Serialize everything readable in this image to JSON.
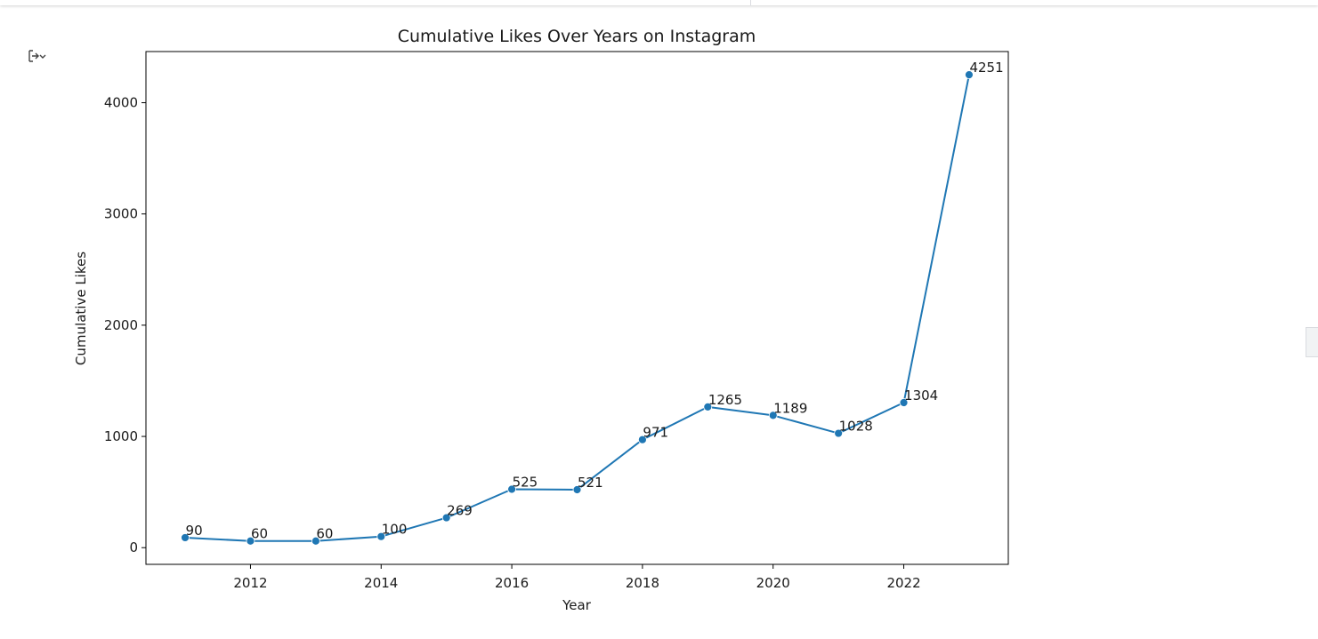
{
  "chart_data": {
    "type": "line",
    "title": "Cumulative Likes Over Years on Instagram",
    "xlabel": "Year",
    "ylabel": "Cumulative Likes",
    "x": [
      2011,
      2012,
      2013,
      2014,
      2015,
      2016,
      2017,
      2018,
      2019,
      2020,
      2021,
      2022,
      2023
    ],
    "series": [
      {
        "values": [
          90,
          60,
          60,
          100,
          269,
          525,
          521,
          971,
          1265,
          1189,
          1028,
          1304,
          4251
        ],
        "color": "#1f77b4",
        "marker": "circle"
      }
    ],
    "data_labels": [
      "90",
      "60",
      "60",
      "100",
      "269",
      "525",
      "521",
      "971",
      "1265",
      "1189",
      "1028",
      "1304",
      "4251"
    ],
    "xticks": [
      2012,
      2014,
      2016,
      2018,
      2020,
      2022
    ],
    "xtick_labels": [
      "2012",
      "2014",
      "2016",
      "2018",
      "2020",
      "2022"
    ],
    "yticks": [
      0,
      1000,
      2000,
      3000,
      4000
    ],
    "ytick_labels": [
      "0",
      "1000",
      "2000",
      "3000",
      "4000"
    ],
    "xlim": [
      2010.4,
      2023.6
    ],
    "ylim": [
      -150,
      4460
    ],
    "grid": false,
    "legend": "none"
  },
  "ui": {
    "output_toggle_icon": "output-toggle-icon"
  }
}
